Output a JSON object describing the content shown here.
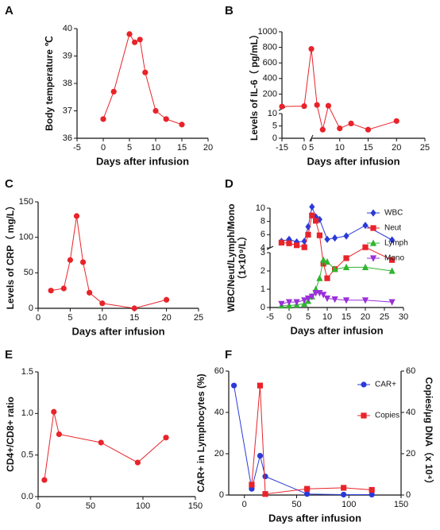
{
  "chart_data": [
    {
      "type": "line",
      "label": "A",
      "xlabel": "Days after infusion",
      "ylabel": [
        "Body temperature ℃"
      ],
      "xlim": [
        -5,
        20
      ],
      "xticks": [
        -5,
        0,
        5,
        10,
        15,
        20
      ],
      "ylim": [
        36,
        40
      ],
      "yticks": [
        36,
        37,
        38,
        39,
        40
      ],
      "series": [
        {
          "color": "#e8232a",
          "marker": "circle",
          "x": [
            0,
            2,
            5,
            6,
            7,
            8,
            10,
            12,
            15
          ],
          "values": [
            36.7,
            37.7,
            39.8,
            39.5,
            39.6,
            38.4,
            37.0,
            36.7,
            36.5
          ]
        }
      ]
    },
    {
      "type": "line",
      "label": "B",
      "xlabel": "Days after infusion",
      "ylabel": [
        "Levels of IL-6（ pg/mL）"
      ],
      "xsegments": [
        [
          -15,
          0
        ],
        [
          5,
          25
        ]
      ],
      "xticks": [
        -15,
        0,
        5,
        10,
        15,
        20,
        25
      ],
      "ysegments": [
        [
          0,
          10
        ],
        [
          10,
          1000
        ]
      ],
      "yticks": [
        0,
        5,
        10,
        200,
        400,
        600,
        800,
        1000
      ],
      "series": [
        {
          "color": "#e8232a",
          "marker": "circle",
          "x": [
            -15,
            0,
            5,
            6,
            7,
            8,
            10,
            12,
            15,
            20
          ],
          "values": [
            40,
            45,
            780,
            60,
            3.5,
            50,
            4,
            6,
            3.5,
            7
          ]
        }
      ]
    },
    {
      "type": "line",
      "label": "C",
      "xlabel": "Days after infusion",
      "ylabel": [
        "Levels of CRP（ mg/L）"
      ],
      "xlim": [
        0,
        25
      ],
      "xticks": [
        0,
        5,
        10,
        15,
        20,
        25
      ],
      "ylim": [
        0,
        150
      ],
      "yticks": [
        0,
        50,
        100,
        150
      ],
      "series": [
        {
          "color": "#e8232a",
          "marker": "circle",
          "x": [
            2,
            4,
            5,
            6,
            7,
            8,
            10,
            15,
            20
          ],
          "values": [
            25,
            28,
            68,
            130,
            65,
            22,
            7,
            0,
            12
          ]
        }
      ]
    },
    {
      "type": "line",
      "label": "D",
      "xlabel": "Days after infusion",
      "ylabel": [
        "WBC/Neut/Lymph/Mono",
        "（1×10⁹/L）"
      ],
      "xlim": [
        -5,
        30
      ],
      "xticks": [
        -5,
        0,
        5,
        10,
        15,
        20,
        25,
        30
      ],
      "ysegments": [
        [
          0,
          3
        ],
        [
          4,
          10
        ]
      ],
      "yticks": [
        0,
        1,
        2,
        3,
        4,
        6,
        8,
        10
      ],
      "series": [
        {
          "name": "WBC",
          "color": "#2a3ad8",
          "marker": "diamond",
          "x": [
            -2,
            0,
            2,
            4,
            5,
            6,
            7,
            8,
            10,
            12,
            15,
            20,
            27
          ],
          "values": [
            5.0,
            5.3,
            4.9,
            5.0,
            7.2,
            10.2,
            8.7,
            8.3,
            5.3,
            5.5,
            5.8,
            7.4,
            5.2
          ]
        },
        {
          "name": "Neut",
          "color": "#e8232a",
          "marker": "square",
          "x": [
            -2,
            0,
            2,
            4,
            5,
            6,
            7,
            8,
            9,
            10,
            12,
            15,
            20,
            27
          ],
          "values": [
            4.8,
            4.7,
            4.4,
            4.1,
            6.0,
            8.9,
            8.1,
            5.9,
            2.4,
            1.6,
            2.1,
            2.7,
            4.1,
            2.6
          ]
        },
        {
          "name": "Lymph",
          "color": "#2fb52f",
          "marker": "triangle",
          "x": [
            -2,
            0,
            2,
            4,
            5,
            6,
            7,
            8,
            9,
            10,
            12,
            15,
            20,
            27
          ],
          "values": [
            0.1,
            0.1,
            0.15,
            0.2,
            0.35,
            0.6,
            1.0,
            1.6,
            2.6,
            2.5,
            2.1,
            2.2,
            2.2,
            2.0
          ]
        },
        {
          "name": "Mono",
          "color": "#9b30d9",
          "marker": "triangle-down",
          "x": [
            -2,
            0,
            2,
            4,
            5,
            6,
            7,
            8,
            9,
            10,
            12,
            15,
            20,
            27
          ],
          "values": [
            0.2,
            0.3,
            0.3,
            0.4,
            0.5,
            0.6,
            0.8,
            0.8,
            0.7,
            0.5,
            0.45,
            0.4,
            0.4,
            0.3
          ]
        }
      ]
    },
    {
      "type": "line",
      "label": "E",
      "ylabel": [
        "CD4+/CD8+ ratio"
      ],
      "xlim": [
        0,
        150
      ],
      "xticks": [
        0,
        50,
        100,
        150
      ],
      "ylim": [
        0,
        1.5
      ],
      "yticks": [
        {
          "value": 0,
          "label": "0.0"
        },
        0.5,
        {
          "value": 1,
          "label": "1.0"
        },
        1.5
      ],
      "series": [
        {
          "color": "#e8232a",
          "marker": "circle",
          "x": [
            6,
            15,
            20,
            60,
            95,
            122
          ],
          "values": [
            0.2,
            1.02,
            0.75,
            0.65,
            0.41,
            0.71
          ]
        }
      ]
    },
    {
      "type": "line",
      "label": "F",
      "xlabel": "Days after infusion",
      "ylabel": [
        "CAR+ in Lymphocytes (%)"
      ],
      "y2label": "Copies/μg DNA（x 10⁴）",
      "xlim": [
        -15,
        150
      ],
      "xticks": [
        0,
        50,
        100,
        150
      ],
      "ylim": [
        0,
        60
      ],
      "yticks": [
        0,
        20,
        40,
        60
      ],
      "y2lim": [
        0,
        60
      ],
      "y2ticks": [
        0,
        20,
        40,
        60
      ],
      "series": [
        {
          "name": "CAR+",
          "color": "#2a3ad8",
          "marker": "circle",
          "x": [
            -10,
            7,
            15,
            20,
            60,
            95,
            122
          ],
          "values": [
            53,
            3,
            19,
            9,
            0.5,
            0.2,
            0.2
          ]
        },
        {
          "name": "Copies",
          "color": "#e8232a",
          "marker": "square",
          "axis": "y2",
          "x": [
            7,
            15,
            20,
            60,
            95,
            122
          ],
          "values": [
            5,
            53,
            0.5,
            3,
            3.5,
            2.5
          ]
        }
      ]
    }
  ]
}
